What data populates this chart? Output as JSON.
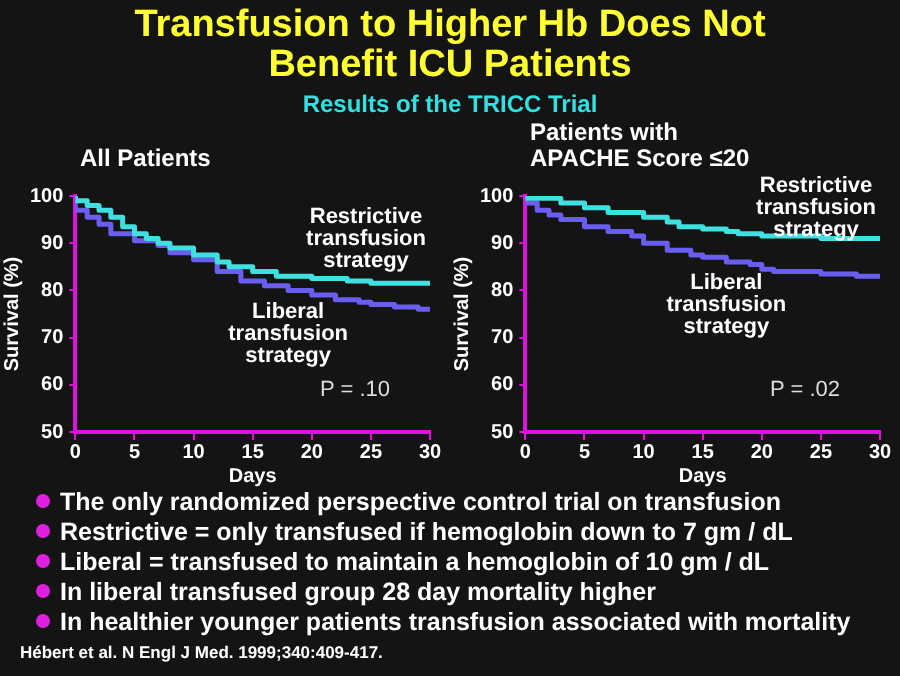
{
  "chart_data": [
    {
      "type": "other",
      "title": "Transfusion to Higher Hb Does Not Benefit ICU Patients",
      "subtitle": "Results of the TRICC Trial"
    },
    {
      "type": "step",
      "title": "All Patients",
      "xlabel": "Days",
      "ylabel": "Survival (%)",
      "xlim": [
        0,
        30
      ],
      "xticks": [
        0,
        5,
        10,
        15,
        20,
        25,
        30
      ],
      "ylim": [
        50,
        100
      ],
      "yticks": [
        50,
        60,
        70,
        80,
        90,
        100
      ],
      "grid": false,
      "legend": false,
      "annotations": [
        "P = .10"
      ],
      "series": [
        {
          "name": "Restrictive transfusion strategy",
          "color": "#40e0e0",
          "x": [
            0,
            1,
            2,
            3,
            4,
            5,
            6,
            7,
            8,
            10,
            12,
            13,
            15,
            17,
            20,
            23,
            25,
            27,
            30
          ],
          "values": [
            100,
            99,
            98,
            97,
            95.5,
            93.5,
            92,
            91,
            90,
            89,
            87.5,
            86,
            85,
            84,
            83,
            82.5,
            82,
            81.5,
            81.5
          ]
        },
        {
          "name": "Liberal transfusion strategy",
          "color": "#6a5ef0",
          "x": [
            0,
            1,
            2,
            3,
            5,
            7,
            8,
            10,
            12,
            14,
            16,
            18,
            20,
            22,
            24,
            25,
            27,
            29,
            30
          ],
          "values": [
            100,
            97,
            95.5,
            94,
            92,
            90.5,
            89.5,
            88,
            86.5,
            84,
            82,
            81,
            80,
            79,
            78,
            77.5,
            77,
            76.5,
            76
          ]
        }
      ]
    },
    {
      "type": "step",
      "title": "Patients with APACHE Score ≤20",
      "xlabel": "Days",
      "ylabel": "Survival (%)",
      "xlim": [
        0,
        30
      ],
      "xticks": [
        0,
        5,
        10,
        15,
        20,
        25,
        30
      ],
      "ylim": [
        50,
        100
      ],
      "yticks": [
        50,
        60,
        70,
        80,
        90,
        100
      ],
      "grid": false,
      "legend": false,
      "annotations": [
        "P = .02"
      ],
      "series": [
        {
          "name": "Restrictive transfusion strategy",
          "color": "#40e0e0",
          "x": [
            0,
            3,
            5,
            7,
            10,
            12,
            13,
            15,
            17,
            18,
            20,
            23,
            25,
            27,
            30
          ],
          "values": [
            100,
            99.5,
            98.5,
            97.5,
            96.5,
            95.5,
            94.5,
            93.5,
            93,
            92.5,
            92,
            91.5,
            91.5,
            91,
            91
          ]
        },
        {
          "name": "Liberal transfusion strategy",
          "color": "#6a5ef0",
          "x": [
            0,
            1,
            2,
            3,
            5,
            7,
            9,
            10,
            12,
            14,
            15,
            17,
            19,
            20,
            21,
            23,
            25,
            28,
            30
          ],
          "values": [
            100,
            98.5,
            97,
            96,
            95,
            93.5,
            92.5,
            91.5,
            90,
            88.5,
            87.5,
            87,
            86,
            85.5,
            84.5,
            84,
            84,
            83.5,
            83
          ]
        }
      ]
    },
    {
      "type": "other",
      "annotations": [
        "The only randomized perspective control trial on transfusion",
        "Restrictive = only transfused if hemoglobin down to 7 gm / dL",
        "Liberal = transfused to maintain a hemoglobin of 10 gm / dL",
        "In liberal transfused group 28 day mortality higher",
        "In healthier younger patients transfusion associated with mortality"
      ]
    },
    {
      "type": "other",
      "annotations": [
        "Hébert et al. N Engl J Med. 1999;340:409-417."
      ]
    }
  ]
}
